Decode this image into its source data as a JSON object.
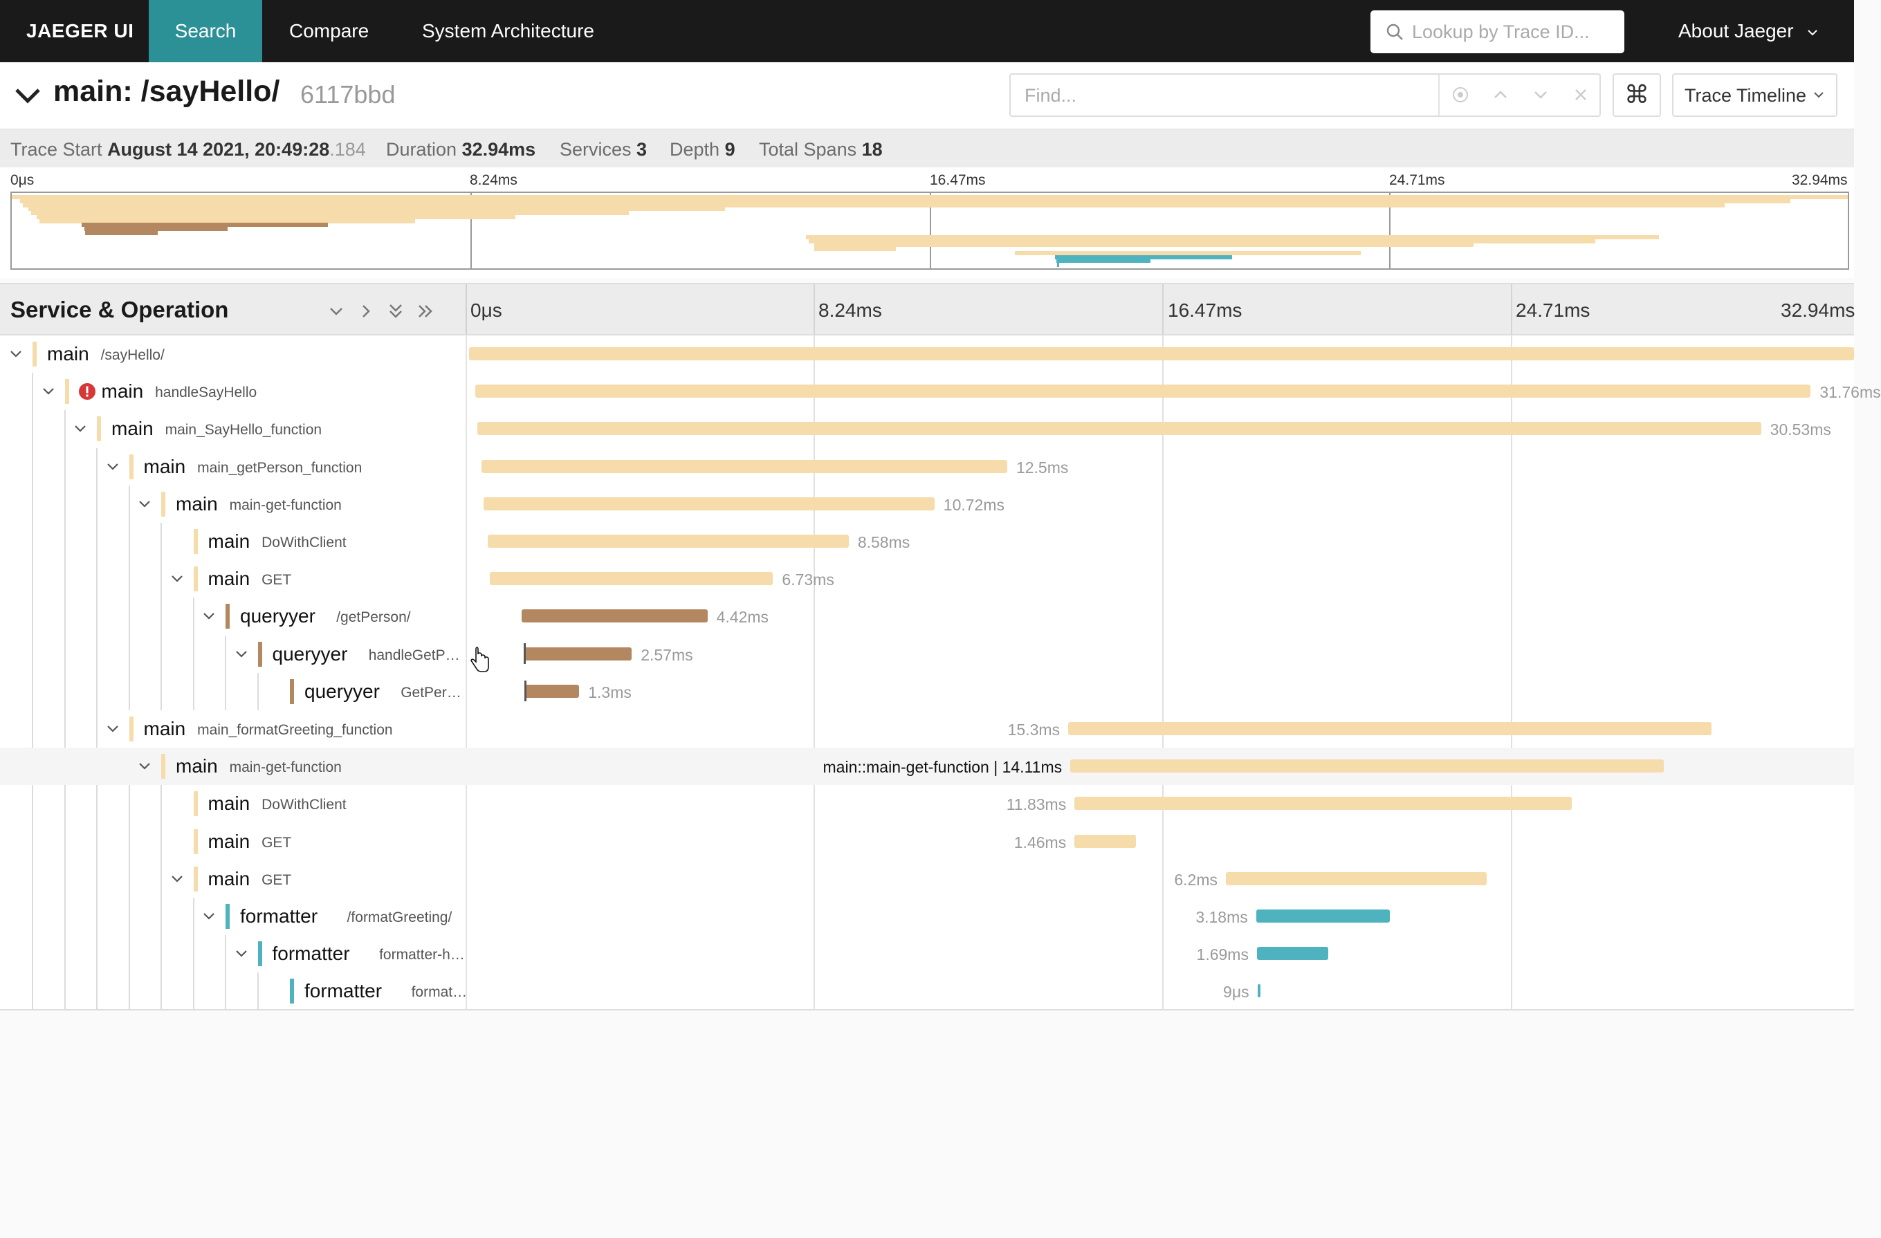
{
  "nav": {
    "brand": "JAEGER UI",
    "links": [
      "Search",
      "Compare",
      "System Architecture"
    ],
    "lookup_placeholder": "Lookup by Trace ID...",
    "about": "About Jaeger"
  },
  "trace": {
    "title": "main: /sayHello/",
    "id": "6117bbd",
    "find_placeholder": "Find...",
    "shortcut_glyph": "⌘",
    "view": "Trace Timeline"
  },
  "summary": {
    "start_label": "Trace Start",
    "start_value": "August 14 2021, 20:49:28",
    "start_ms": ".184",
    "duration_label": "Duration",
    "duration_value": "32.94ms",
    "services_label": "Services",
    "services_value": "3",
    "depth_label": "Depth",
    "depth_value": "9",
    "spans_label": "Total Spans",
    "spans_value": "18"
  },
  "ticks": [
    "0μs",
    "8.24ms",
    "16.47ms",
    "24.71ms",
    "32.94ms"
  ],
  "timeline": {
    "header": "Service & Operation",
    "hover_label": "main::main-get-function | 14.11ms"
  },
  "colors": {
    "main": "#f5dcaa",
    "queryyer": "#b3875f",
    "formatter": "#4fb3bf",
    "error": "#d63737",
    "active_nav": "#2c9196"
  },
  "spans": [
    {
      "service": "main",
      "operation": "/sayHello/",
      "depth": 0,
      "toggle": true,
      "start": 0,
      "duration": 32.94,
      "label": ""
    },
    {
      "service": "main",
      "operation": "handleSayHello",
      "depth": 1,
      "toggle": true,
      "error": true,
      "start": 0.15,
      "duration": 31.76,
      "label": "31.76ms"
    },
    {
      "service": "main",
      "operation": "main_SayHello_function",
      "depth": 2,
      "toggle": true,
      "start": 0.2,
      "duration": 30.53,
      "label": "30.53ms"
    },
    {
      "service": "main",
      "operation": "main_getPerson_function",
      "depth": 3,
      "toggle": true,
      "start": 0.3,
      "duration": 12.5,
      "label": "12.5ms"
    },
    {
      "service": "main",
      "operation": "main-get-function",
      "depth": 4,
      "toggle": true,
      "start": 0.35,
      "duration": 10.72,
      "label": "10.72ms"
    },
    {
      "service": "main",
      "operation": "DoWithClient",
      "depth": 5,
      "toggle": false,
      "start": 0.45,
      "duration": 8.58,
      "label": "8.58ms"
    },
    {
      "service": "main",
      "operation": "GET",
      "depth": 5,
      "toggle": true,
      "start": 0.5,
      "duration": 6.73,
      "label": "6.73ms"
    },
    {
      "service": "queryyer",
      "operation": "/getPerson/",
      "depth": 6,
      "toggle": true,
      "start": 1.25,
      "duration": 4.42,
      "label": "4.42ms"
    },
    {
      "service": "queryyer",
      "operation": "handleGetP…",
      "depth": 7,
      "toggle": true,
      "start": 1.3,
      "duration": 2.57,
      "label": "2.57ms"
    },
    {
      "service": "queryyer",
      "operation": "GetPer…",
      "depth": 8,
      "toggle": false,
      "start": 1.32,
      "duration": 1.3,
      "label": "1.3ms"
    },
    {
      "service": "main",
      "operation": "main_formatGreeting_function",
      "depth": 3,
      "toggle": true,
      "start": 14.25,
      "duration": 15.3,
      "label": "15.3ms"
    },
    {
      "service": "main",
      "operation": "main-get-function",
      "depth": 4,
      "toggle": true,
      "hover": true,
      "start": 14.3,
      "duration": 14.11,
      "label": ""
    },
    {
      "service": "main",
      "operation": "DoWithClient",
      "depth": 5,
      "toggle": false,
      "start": 14.4,
      "duration": 11.83,
      "label": "11.83ms"
    },
    {
      "service": "main",
      "operation": "GET",
      "depth": 5,
      "toggle": false,
      "start": 14.4,
      "duration": 1.46,
      "label": "1.46ms"
    },
    {
      "service": "main",
      "operation": "GET",
      "depth": 5,
      "toggle": true,
      "start": 18.0,
      "duration": 6.2,
      "label": "6.2ms"
    },
    {
      "service": "formatter",
      "operation": "/formatGreeting/",
      "depth": 6,
      "toggle": true,
      "start": 18.72,
      "duration": 3.18,
      "label": "3.18ms"
    },
    {
      "service": "formatter",
      "operation": "formatter-h…",
      "depth": 7,
      "toggle": true,
      "start": 18.74,
      "duration": 1.69,
      "label": "1.69ms"
    },
    {
      "service": "formatter",
      "operation": "format…",
      "depth": 8,
      "toggle": false,
      "start": 18.75,
      "duration": 0.009,
      "label": "9μs"
    }
  ]
}
